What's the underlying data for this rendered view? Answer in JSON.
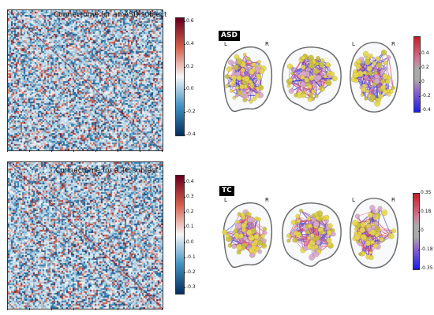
{
  "panels": [
    {
      "key": "asd",
      "matrix_title": "Connectome for an ASD subject",
      "matrix_colorbar_ticks": [
        "0.6",
        "0.4",
        "0.2",
        "0.0",
        "-0.2",
        "-0.4"
      ],
      "matrix_colorbar_range": [
        -0.4,
        0.6
      ],
      "brain_label": "ASD",
      "brain_colorbar_ticks": [
        "0.4",
        "0.2",
        "0",
        "-0.2",
        "-0.4"
      ],
      "brain_colorbar_range": [
        -0.4,
        0.4
      ],
      "left_label": "L",
      "right_label": "R",
      "edge_balance": "mixed-blue"
    },
    {
      "key": "tc",
      "matrix_title": "Connectome for a TC subject",
      "matrix_colorbar_ticks": [
        "0.4",
        "0.3",
        "0.2",
        "0.1",
        "0.0",
        "-0.1",
        "-0.2",
        "-0.3"
      ],
      "matrix_colorbar_range": [
        -0.35,
        0.45
      ],
      "brain_label": "TC",
      "brain_colorbar_ticks": [
        "0.35",
        "0.18",
        "0",
        "-0.18",
        "-0.35"
      ],
      "brain_colorbar_range": [
        -0.35,
        0.35
      ],
      "left_label": "L",
      "right_label": "R",
      "edge_balance": "mixed-red"
    }
  ],
  "colors": {
    "negative": "#2b3fd6",
    "positive": "#c0282d",
    "node": "#e8d84a",
    "outline": "#555555"
  }
}
